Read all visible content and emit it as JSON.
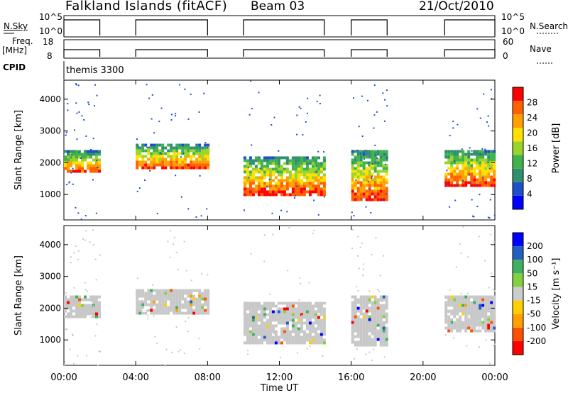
{
  "header": {
    "station": "Falkland Islands (fitACF)",
    "beam": "Beam 03",
    "date": "21/Oct/2010"
  },
  "strips": {
    "nsky_label": "N.Sky",
    "nsky_ticks": [
      "10^5",
      "10^0"
    ],
    "nsearch_label": "N.Search",
    "nsearch_ticks": [
      "10^5",
      "10^0"
    ],
    "freq_label": "Freq.",
    "freq_unit": "[MHz]",
    "freq_ticks": [
      "18",
      "8"
    ],
    "nave_label": "Nave",
    "nave_ticks": [
      "60",
      "0"
    ],
    "cpid_label": "CPID",
    "cpid_value": "themis 3300"
  },
  "chart_data": [
    {
      "type": "heatmap",
      "name_on_colorbar": "Power [dB]",
      "ylabel": "Slant Range [km]",
      "y_ticks": [
        "4000",
        "3000",
        "2000",
        "1000"
      ],
      "ylim": [
        200,
        4600
      ],
      "colorbar_ticks": [
        "28",
        "24",
        "20",
        "16",
        "12",
        "8",
        "4"
      ],
      "colorbar_range": [
        0,
        30
      ],
      "colorbar_colors": [
        "#0000ff",
        "#1c4fc8",
        "#2f8f6e",
        "#3fb24a",
        "#9ad42a",
        "#ffe000",
        "#ffa000",
        "#ff6000",
        "#ff0000"
      ],
      "echo_blocks": [
        {
          "t_start": 0.0,
          "t_end": 2.0,
          "r_low": 1700,
          "r_high": 2400,
          "power": 24
        },
        {
          "t_start": 4.0,
          "t_end": 8.0,
          "r_low": 1800,
          "r_high": 2600,
          "power": 20
        },
        {
          "t_start": 10.0,
          "t_end": 14.5,
          "r_low": 1000,
          "r_high": 2200,
          "power": 22
        },
        {
          "t_start": 16.0,
          "t_end": 18.0,
          "r_low": 800,
          "r_high": 2400,
          "power": 18
        },
        {
          "t_start": 21.2,
          "t_end": 24.0,
          "r_low": 1300,
          "r_high": 2400,
          "power": 22
        }
      ]
    },
    {
      "type": "heatmap",
      "name_on_colorbar": "Velocity [m s⁻¹]",
      "ylabel": "Slant Range [km]",
      "y_ticks": [
        "4000",
        "3000",
        "2000",
        "1000"
      ],
      "ylim": [
        200,
        4600
      ],
      "colorbar_ticks": [
        "200",
        "100",
        "50",
        "15",
        "-15",
        "-50",
        "-100",
        "-200"
      ],
      "colorbar_colors": [
        "#ff0000",
        "#ff5000",
        "#ffa000",
        "#ffd000",
        "#cccccc",
        "#80d040",
        "#40b060",
        "#2060c0",
        "#0000ff"
      ],
      "echo_blocks": [
        {
          "t_start": 0.0,
          "t_end": 2.0,
          "r_low": 1700,
          "r_high": 2400,
          "velocity": 0
        },
        {
          "t_start": 4.0,
          "t_end": 8.0,
          "r_low": 1800,
          "r_high": 2600,
          "velocity": 0
        },
        {
          "t_start": 10.0,
          "t_end": 14.5,
          "r_low": 900,
          "r_high": 2200,
          "velocity": 0
        },
        {
          "t_start": 16.0,
          "t_end": 18.0,
          "r_low": 800,
          "r_high": 2400,
          "velocity": 0
        },
        {
          "t_start": 21.2,
          "t_end": 24.0,
          "r_low": 1300,
          "r_high": 2400,
          "velocity": 0
        }
      ]
    }
  ],
  "time_axis": {
    "label": "Time UT",
    "ticks": [
      "00:00",
      "04:00",
      "08:00",
      "12:00",
      "16:00",
      "20:00",
      "00:00"
    ],
    "xlim_hours": [
      0,
      24
    ]
  }
}
